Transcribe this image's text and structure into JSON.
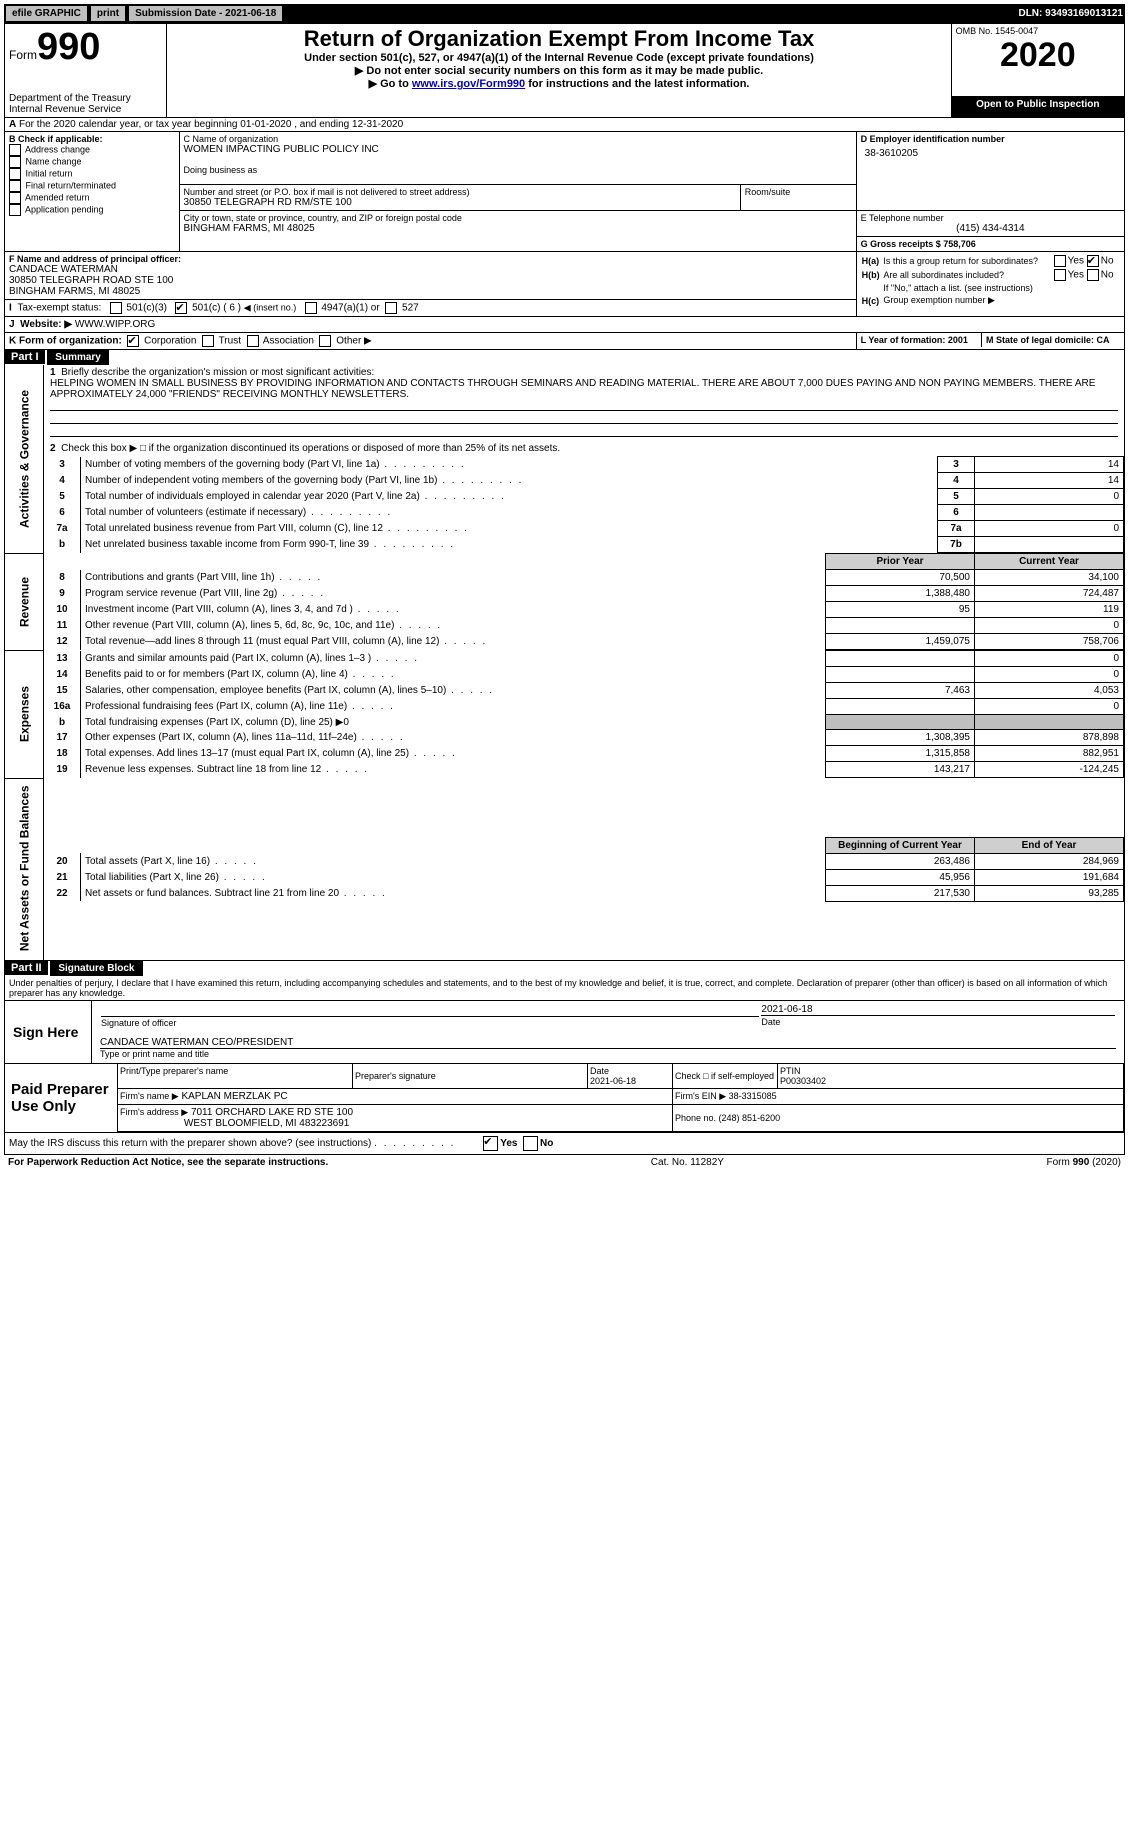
{
  "topbar": {
    "efile": "efile GRAPHIC",
    "print": "print",
    "submission": "Submission Date - 2021-06-18",
    "dln": "DLN: 93493169013121"
  },
  "header": {
    "form_word": "Form",
    "form_num": "990",
    "title": "Return of Organization Exempt From Income Tax",
    "sub1": "Under section 501(c), 527, or 4947(a)(1) of the Internal Revenue Code (except private foundations)",
    "sub2": "▶ Do not enter social security numbers on this form as it may be made public.",
    "sub3_a": "▶ Go to ",
    "sub3_link": "www.irs.gov/Form990",
    "sub3_b": " for instructions and the latest information.",
    "dept": "Department of the Treasury\nInternal Revenue Service",
    "omb": "OMB No. 1545-0047",
    "year": "2020",
    "inspection": "Open to Public Inspection"
  },
  "periodA": "For the 2020 calendar year, or tax year beginning 01-01-2020   , and ending 12-31-2020",
  "boxB": {
    "title": "B Check if applicable:",
    "opts": [
      "Address change",
      "Name change",
      "Initial return",
      "Final return/terminated",
      "Amended return",
      "Application pending"
    ]
  },
  "boxC": {
    "label_name": "C Name of organization",
    "name": "WOMEN IMPACTING PUBLIC POLICY INC",
    "dba_label": "Doing business as",
    "addr_label": "Number and street (or P.O. box if mail is not delivered to street address)",
    "room_label": "Room/suite",
    "addr": "30850 TELEGRAPH RD RM/STE 100",
    "city_label": "City or town, state or province, country, and ZIP or foreign postal code",
    "city": "BINGHAM FARMS, MI  48025"
  },
  "boxD": {
    "label": "D Employer identification number",
    "val": "38-3610205"
  },
  "boxE": {
    "label": "E Telephone number",
    "val": "(415) 434-4314"
  },
  "boxG": {
    "label": "G Gross receipts $ 758,706"
  },
  "boxF": {
    "label": "F  Name and address of principal officer:",
    "l1": "CANDACE WATERMAN",
    "l2": "30850 TELEGRAPH ROAD STE 100",
    "l3": "BINGHAM FARMS, MI  48025"
  },
  "boxH": {
    "a": "Is this a group return for subordinates?",
    "b": "Are all subordinates included?",
    "note": "If \"No,\" attach a list. (see instructions)",
    "c": "Group exemption number ▶"
  },
  "boxI": {
    "label": "Tax-exempt status:",
    "o1": "501(c)(3)",
    "o2a": "501(c) ( 6 ) ",
    "o2b": "◀ (insert no.)",
    "o3": "4947(a)(1) or",
    "o4": "527"
  },
  "boxJ": {
    "label": "Website: ▶",
    "val": "WWW.WIPP.ORG"
  },
  "boxK": {
    "label": "K Form of organization:",
    "opts": [
      "Corporation",
      "Trust",
      "Association",
      "Other ▶"
    ]
  },
  "boxL": {
    "label": "L Year of formation: 2001"
  },
  "boxM": {
    "label": "M State of legal domicile: CA"
  },
  "part1": {
    "title": "Summary",
    "q1": "Briefly describe the organization's mission or most significant activities:",
    "mission": "HELPING WOMEN IN SMALL BUSINESS BY PROVIDING INFORMATION AND CONTACTS THROUGH SEMINARS AND READING MATERIAL. THERE ARE ABOUT 7,000 DUES PAYING AND NON PAYING MEMBERS. THERE ARE APPROXIMATELY 24,000 \"FRIENDS\" RECEIVING MONTHLY NEWSLETTERS.",
    "q2": "Check this box ▶ □  if the organization discontinued its operations or disposed of more than 25% of its net assets.",
    "rows_top": [
      {
        "n": "3",
        "d": "Number of voting members of the governing body (Part VI, line 1a)",
        "box": "3",
        "v": "14"
      },
      {
        "n": "4",
        "d": "Number of independent voting members of the governing body (Part VI, line 1b)",
        "box": "4",
        "v": "14"
      },
      {
        "n": "5",
        "d": "Total number of individuals employed in calendar year 2020 (Part V, line 2a)",
        "box": "5",
        "v": "0"
      },
      {
        "n": "6",
        "d": "Total number of volunteers (estimate if necessary)",
        "box": "6",
        "v": ""
      },
      {
        "n": "7a",
        "d": "Total unrelated business revenue from Part VIII, column (C), line 12",
        "box": "7a",
        "v": "0"
      },
      {
        "n": "b",
        "d": "Net unrelated business taxable income from Form 990-T, line 39",
        "box": "7b",
        "v": ""
      }
    ],
    "head_prior": "Prior Year",
    "head_curr": "Current Year",
    "rows_rev": [
      {
        "n": "8",
        "d": "Contributions and grants (Part VIII, line 1h)",
        "p": "70,500",
        "c": "34,100"
      },
      {
        "n": "9",
        "d": "Program service revenue (Part VIII, line 2g)",
        "p": "1,388,480",
        "c": "724,487"
      },
      {
        "n": "10",
        "d": "Investment income (Part VIII, column (A), lines 3, 4, and 7d )",
        "p": "95",
        "c": "119"
      },
      {
        "n": "11",
        "d": "Other revenue (Part VIII, column (A), lines 5, 6d, 8c, 9c, 10c, and 11e)",
        "p": "",
        "c": "0"
      },
      {
        "n": "12",
        "d": "Total revenue—add lines 8 through 11 (must equal Part VIII, column (A), line 12)",
        "p": "1,459,075",
        "c": "758,706"
      }
    ],
    "rows_exp": [
      {
        "n": "13",
        "d": "Grants and similar amounts paid (Part IX, column (A), lines 1–3 )",
        "p": "",
        "c": "0"
      },
      {
        "n": "14",
        "d": "Benefits paid to or for members (Part IX, column (A), line 4)",
        "p": "",
        "c": "0"
      },
      {
        "n": "15",
        "d": "Salaries, other compensation, employee benefits (Part IX, column (A), lines 5–10)",
        "p": "7,463",
        "c": "4,053"
      },
      {
        "n": "16a",
        "d": "Professional fundraising fees (Part IX, column (A), line 11e)",
        "p": "",
        "c": "0"
      },
      {
        "n": "b",
        "d": "Total fundraising expenses (Part IX, column (D), line 25) ▶0",
        "p": "SHADE",
        "c": "SHADE"
      },
      {
        "n": "17",
        "d": "Other expenses (Part IX, column (A), lines 11a–11d, 11f–24e)",
        "p": "1,308,395",
        "c": "878,898"
      },
      {
        "n": "18",
        "d": "Total expenses. Add lines 13–17 (must equal Part IX, column (A), line 25)",
        "p": "1,315,858",
        "c": "882,951"
      },
      {
        "n": "19",
        "d": "Revenue less expenses. Subtract line 18 from line 12",
        "p": "143,217",
        "c": "-124,245"
      }
    ],
    "head_beg": "Beginning of Current Year",
    "head_end": "End of Year",
    "rows_bal": [
      {
        "n": "20",
        "d": "Total assets (Part X, line 16)",
        "p": "263,486",
        "c": "284,969"
      },
      {
        "n": "21",
        "d": "Total liabilities (Part X, line 26)",
        "p": "45,956",
        "c": "191,684"
      },
      {
        "n": "22",
        "d": "Net assets or fund balances. Subtract line 21 from line 20",
        "p": "217,530",
        "c": "93,285"
      }
    ]
  },
  "part2": {
    "title": "Signature Block",
    "perjury": "Under penalties of perjury, I declare that I have examined this return, including accompanying schedules and statements, and to the best of my knowledge and belief, it is true, correct, and complete. Declaration of preparer (other than officer) is based on all information of which preparer has any knowledge.",
    "sign_here": "Sign Here",
    "sig_officer": "Signature of officer",
    "date": "Date",
    "date_v": "2021-06-18",
    "typed": "CANDACE WATERMAN CEO/PRESIDENT",
    "typed_l": "Type or print name and title",
    "paid": "Paid Preparer Use Only",
    "p_name_l": "Print/Type preparer's name",
    "p_sig_l": "Preparer's signature",
    "p_date_l": "Date",
    "p_date_v": "2021-06-18",
    "p_check_l": "Check □ if self-employed",
    "ptin_l": "PTIN",
    "ptin_v": "P00303402",
    "firm_name_l": "Firm's name    ▶",
    "firm_name_v": "KAPLAN MERZLAK PC",
    "firm_ein_l": "Firm's EIN ▶ 38-3315085",
    "firm_addr_l": "Firm's address ▶",
    "firm_addr_v1": "7011 ORCHARD LAKE RD STE 100",
    "firm_addr_v2": "WEST BLOOMFIELD, MI  483223691",
    "phone_l": "Phone no. (248) 851-6200",
    "discuss": "May the IRS discuss this return with the preparer shown above? (see instructions)"
  },
  "footer": {
    "l": "For Paperwork Reduction Act Notice, see the separate instructions.",
    "c": "Cat. No. 11282Y",
    "r": "Form 990 (2020)"
  },
  "yes": "Yes",
  "no": "No"
}
